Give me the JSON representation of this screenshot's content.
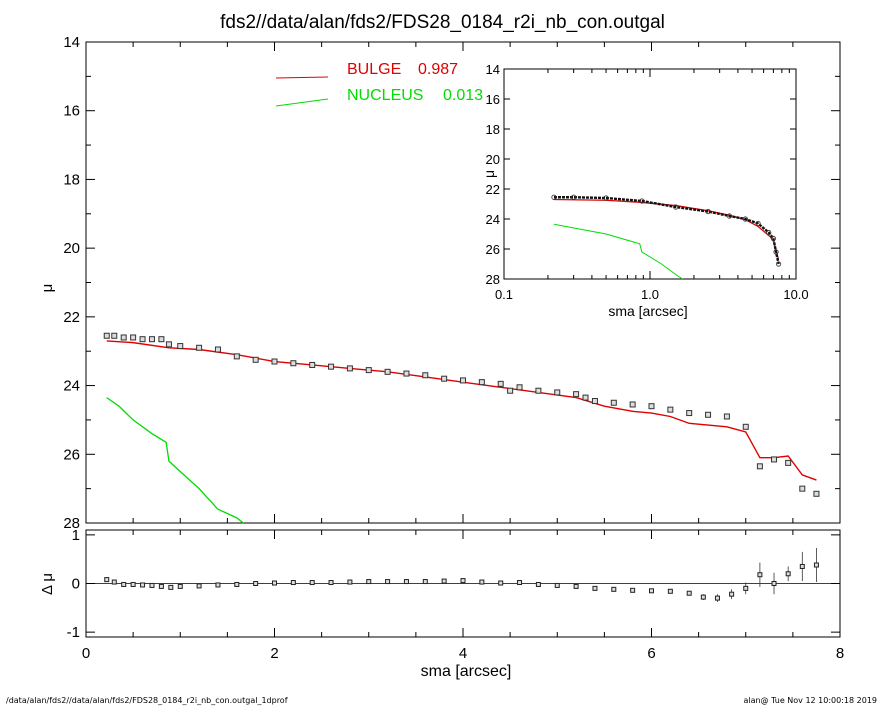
{
  "title": "fds2//data/alan/fds2/FDS28_0184_r2i_nb_con.outgal",
  "footer": {
    "left": "/data/alan/fds2//data/alan/fds2/FDS28_0184_r2i_nb_con.outgal_1dprof",
    "right": "alan@  Tue Nov 12 10:00:18 2019"
  },
  "colors": {
    "bulge": "#e00000",
    "nucleus": "#00dd00",
    "data": "#333333"
  },
  "chart_data": [
    {
      "type": "scatter",
      "xlabel": "sma [arcsec]",
      "ylabel": "μ",
      "xlim": [
        0,
        8
      ],
      "ylim": [
        28,
        14
      ],
      "y_inverted": true,
      "xticks": [
        "0",
        "2",
        "4",
        "6",
        "8"
      ],
      "yticks": [
        "14",
        "16",
        "18",
        "20",
        "22",
        "24",
        "26",
        "28"
      ],
      "legend": [
        {
          "label": "BULGE",
          "value": "0.987",
          "color": "#e00000"
        },
        {
          "label": "NUCLEUS",
          "value": "0.013",
          "color": "#00dd00"
        }
      ],
      "legend_position": "top-center",
      "series": [
        {
          "name": "data",
          "style": "square-markers",
          "x": [
            0.22,
            0.3,
            0.4,
            0.5,
            0.6,
            0.7,
            0.8,
            0.88,
            1.0,
            1.2,
            1.4,
            1.6,
            1.8,
            2.0,
            2.2,
            2.4,
            2.6,
            2.8,
            3.0,
            3.2,
            3.4,
            3.6,
            3.8,
            4.0,
            4.2,
            4.4,
            4.5,
            4.6,
            4.8,
            5.0,
            5.2,
            5.3,
            5.4,
            5.6,
            5.8,
            6.0,
            6.2,
            6.4,
            6.6,
            6.8,
            7.0,
            7.15,
            7.3,
            7.45,
            7.6,
            7.75
          ],
          "y": [
            22.55,
            22.55,
            22.6,
            22.6,
            22.65,
            22.65,
            22.65,
            22.8,
            22.85,
            22.9,
            22.95,
            23.15,
            23.25,
            23.3,
            23.35,
            23.4,
            23.45,
            23.5,
            23.55,
            23.6,
            23.65,
            23.7,
            23.8,
            23.85,
            23.9,
            23.95,
            24.15,
            24.05,
            24.15,
            24.2,
            24.25,
            24.35,
            24.45,
            24.5,
            24.55,
            24.6,
            24.7,
            24.8,
            24.85,
            24.9,
            25.2,
            26.35,
            26.15,
            26.25,
            27.0,
            27.15
          ]
        },
        {
          "name": "BULGE",
          "x": [
            0.22,
            0.5,
            0.88,
            1.2,
            1.6,
            2.0,
            2.4,
            2.8,
            3.2,
            3.6,
            4.0,
            4.4,
            4.8,
            5.2,
            5.5,
            5.8,
            6.0,
            6.2,
            6.4,
            6.8,
            7.0,
            7.15,
            7.3,
            7.45,
            7.6,
            7.75
          ],
          "y": [
            22.7,
            22.75,
            22.9,
            22.95,
            23.1,
            23.3,
            23.4,
            23.5,
            23.6,
            23.75,
            23.9,
            24.05,
            24.2,
            24.35,
            24.6,
            24.75,
            24.8,
            24.9,
            25.1,
            25.2,
            25.35,
            26.1,
            26.1,
            26.05,
            26.6,
            26.75
          ]
        },
        {
          "name": "NUCLEUS",
          "x": [
            0.22,
            0.35,
            0.5,
            0.7,
            0.85,
            0.88,
            1.0,
            1.2,
            1.4,
            1.6,
            1.67
          ],
          "y": [
            24.35,
            24.6,
            25.0,
            25.4,
            25.65,
            26.2,
            26.5,
            27.0,
            27.6,
            27.85,
            28.0
          ]
        }
      ]
    },
    {
      "type": "scatter",
      "xlabel": "sma [arcsec]",
      "ylabel": "μ",
      "xscale": "log",
      "xlim": [
        0.1,
        10.0
      ],
      "ylim": [
        28,
        14
      ],
      "y_inverted": true,
      "xticks": [
        "0.1",
        "1.0",
        "10.0"
      ],
      "yticks": [
        "14",
        "16",
        "18",
        "20",
        "22",
        "24",
        "26",
        "28"
      ],
      "series": [
        {
          "name": "data",
          "style": "circle-markers",
          "x": [
            0.22,
            0.3,
            0.5,
            0.88,
            1.5,
            2.5,
            3.5,
            4.5,
            5.5,
            6.5,
            7.0,
            7.3,
            7.6
          ],
          "y": [
            22.55,
            22.55,
            22.6,
            22.8,
            23.2,
            23.5,
            23.8,
            24.0,
            24.3,
            24.9,
            25.3,
            26.2,
            27.0
          ]
        },
        {
          "name": "BULGE",
          "x": [
            0.22,
            0.5,
            0.88,
            1.5,
            2.5,
            3.5,
            4.5,
            5.5,
            6.5,
            7.0,
            7.3,
            7.6
          ],
          "y": [
            22.7,
            22.75,
            22.9,
            23.1,
            23.45,
            23.75,
            24.05,
            24.5,
            25.1,
            25.4,
            26.1,
            26.7
          ]
        },
        {
          "name": "NUCLEUS",
          "x": [
            0.22,
            0.5,
            0.85,
            0.88,
            1.2,
            1.5,
            1.67
          ],
          "y": [
            24.35,
            25.0,
            25.65,
            26.2,
            27.0,
            27.7,
            28.0
          ]
        }
      ]
    },
    {
      "type": "scatter",
      "xlabel": "sma [arcsec]",
      "ylabel": "Δ μ",
      "xlim": [
        0,
        8
      ],
      "ylim": [
        -1.1,
        1.1
      ],
      "yticks": [
        "1",
        "0",
        "-1"
      ],
      "zero_line": true,
      "series": [
        {
          "name": "residual",
          "style": "square-markers-errorbars",
          "x": [
            0.22,
            0.3,
            0.4,
            0.5,
            0.6,
            0.7,
            0.8,
            0.9,
            1.0,
            1.2,
            1.4,
            1.6,
            1.8,
            2.0,
            2.2,
            2.4,
            2.6,
            2.8,
            3.0,
            3.2,
            3.4,
            3.6,
            3.8,
            4.0,
            4.2,
            4.4,
            4.6,
            4.8,
            5.0,
            5.2,
            5.4,
            5.6,
            5.8,
            6.0,
            6.2,
            6.4,
            6.55,
            6.7,
            6.85,
            7.0,
            7.15,
            7.3,
            7.45,
            7.6,
            7.75
          ],
          "y": [
            0.08,
            0.03,
            -0.02,
            -0.02,
            -0.03,
            -0.04,
            -0.06,
            -0.08,
            -0.06,
            -0.05,
            -0.03,
            -0.02,
            0.0,
            0.01,
            0.02,
            0.02,
            0.02,
            0.03,
            0.04,
            0.04,
            0.04,
            0.04,
            0.05,
            0.06,
            0.03,
            0.01,
            0.02,
            -0.02,
            -0.04,
            -0.06,
            -0.1,
            -0.12,
            -0.14,
            -0.15,
            -0.16,
            -0.2,
            -0.28,
            -0.3,
            -0.22,
            -0.1,
            0.18,
            0.0,
            0.2,
            0.35,
            0.38
          ],
          "err": [
            0.01,
            0.01,
            0.01,
            0.01,
            0.01,
            0.01,
            0.01,
            0.01,
            0.01,
            0.01,
            0.01,
            0.01,
            0.01,
            0.01,
            0.01,
            0.01,
            0.01,
            0.01,
            0.01,
            0.01,
            0.01,
            0.01,
            0.01,
            0.01,
            0.01,
            0.01,
            0.01,
            0.01,
            0.01,
            0.01,
            0.02,
            0.02,
            0.02,
            0.02,
            0.03,
            0.04,
            0.06,
            0.08,
            0.1,
            0.12,
            0.25,
            0.22,
            0.15,
            0.3,
            0.35
          ]
        }
      ]
    }
  ]
}
